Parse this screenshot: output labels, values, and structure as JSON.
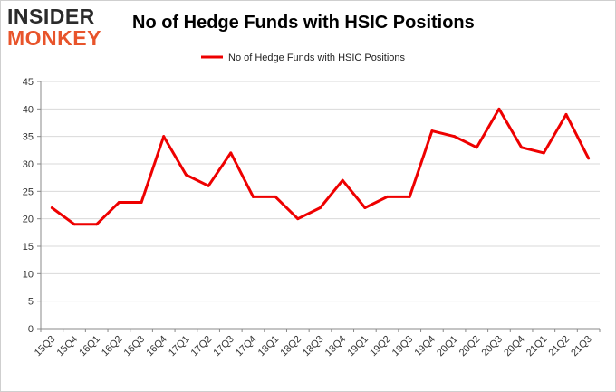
{
  "brand": {
    "line1": "INSIDER",
    "line2": "MONKEY"
  },
  "chart_data": {
    "type": "line",
    "title": "No of Hedge Funds with HSIC Positions",
    "xlabel": "",
    "ylabel": "",
    "categories": [
      "15Q3",
      "15Q4",
      "16Q1",
      "16Q2",
      "16Q3",
      "16Q4",
      "17Q1",
      "17Q2",
      "17Q3",
      "17Q4",
      "18Q1",
      "18Q2",
      "18Q3",
      "18Q4",
      "19Q1",
      "19Q2",
      "19Q3",
      "19Q4",
      "20Q1",
      "20Q2",
      "20Q3",
      "20Q4",
      "21Q1",
      "21Q2",
      "21Q3"
    ],
    "series": [
      {
        "name": "No of Hedge Funds with HSIC Positions",
        "values": [
          22,
          19,
          19,
          23,
          23,
          35,
          28,
          26,
          32,
          24,
          24,
          20,
          22,
          27,
          22,
          24,
          24,
          36,
          35,
          33,
          40,
          33,
          32,
          39,
          31
        ]
      }
    ],
    "ylim": [
      0,
      45
    ],
    "yticks": [
      0,
      5,
      10,
      15,
      20,
      25,
      30,
      35,
      40,
      45
    ],
    "grid": true,
    "legend_position": "top-center",
    "line_color": "#ee0000"
  }
}
